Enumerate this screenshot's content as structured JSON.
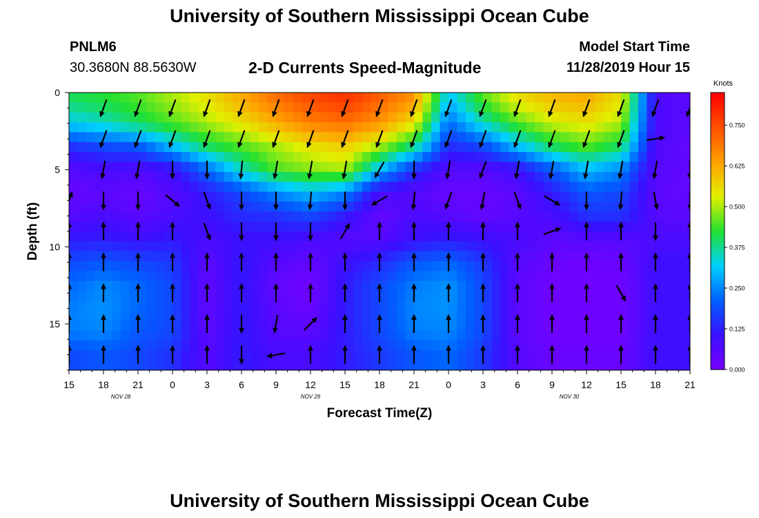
{
  "page": {
    "title_top": "University of Southern Mississippi Ocean Cube",
    "title_bottom": "University of Southern Mississippi Ocean Cube",
    "station_id": "PNLM6",
    "station_coords": "30.3680N 88.5630W",
    "model_start_label": "Model Start Time",
    "model_start_value": "11/28/2019 Hour 15",
    "subtitle": "2-D Currents Speed-Magnitude"
  },
  "colors": {
    "arrow": "#000000",
    "scale": [
      "#7a00ff",
      "#3a10ff",
      "#0060ff",
      "#00d0ff",
      "#20e030",
      "#e0f000",
      "#ffa000",
      "#ff5000",
      "#ff0000"
    ]
  },
  "chart_data": {
    "type": "heatmap",
    "title": "2-D Currents Speed-Magnitude",
    "xlabel": "Forecast Time(Z)",
    "ylabel": "Depth (ft)",
    "x_hours_range": [
      0,
      54
    ],
    "y_range": [
      0,
      18
    ],
    "y_ticks": [
      0,
      5,
      10,
      15
    ],
    "x_tick_labels": [
      "15",
      "18",
      "21",
      "0",
      "3",
      "6",
      "9",
      "12",
      "15",
      "18",
      "21",
      "0",
      "3",
      "6",
      "9",
      "12",
      "15",
      "18",
      "21"
    ],
    "date_labels": [
      {
        "label": "NOV  28",
        "hour": 4.5
      },
      {
        "label": "NOV  29",
        "hour": 21
      },
      {
        "label": "NOV  30",
        "hour": 43.5
      }
    ],
    "colorbar": {
      "label": "Knots",
      "range": [
        0,
        0.85
      ],
      "ticks": [
        "0.000",
        "0.125",
        "0.250",
        "0.375",
        "0.500",
        "0.625",
        "0.750"
      ],
      "tick_values": [
        0,
        0.125,
        0.25,
        0.375,
        0.5,
        0.625,
        0.75
      ]
    },
    "depths": [
      0.5,
      2,
      3.5,
      5,
      6.5,
      8,
      9.5,
      11,
      12.5,
      14,
      15.5,
      17
    ],
    "speed_hours": [
      0,
      3,
      6,
      9,
      12,
      15,
      18,
      21,
      24,
      27,
      30,
      33,
      36,
      39,
      42,
      45,
      48,
      51,
      54
    ],
    "speed": [
      [
        0.4,
        0.42,
        0.45,
        0.5,
        0.55,
        0.62,
        0.7,
        0.75,
        0.78,
        0.72,
        0.65,
        0.3,
        0.45,
        0.55,
        0.6,
        0.62,
        0.55,
        0.08,
        0.05
      ],
      [
        0.32,
        0.35,
        0.4,
        0.45,
        0.5,
        0.55,
        0.62,
        0.68,
        0.7,
        0.65,
        0.55,
        0.22,
        0.35,
        0.45,
        0.52,
        0.55,
        0.5,
        0.08,
        0.05
      ],
      [
        0.15,
        0.18,
        0.2,
        0.3,
        0.4,
        0.45,
        0.5,
        0.55,
        0.58,
        0.5,
        0.38,
        0.14,
        0.18,
        0.3,
        0.4,
        0.45,
        0.4,
        0.07,
        0.04
      ],
      [
        0.06,
        0.08,
        0.07,
        0.1,
        0.22,
        0.35,
        0.45,
        0.48,
        0.5,
        0.3,
        0.15,
        0.06,
        0.06,
        0.1,
        0.2,
        0.3,
        0.25,
        0.06,
        0.04
      ],
      [
        0.03,
        0.05,
        0.03,
        0.06,
        0.12,
        0.18,
        0.25,
        0.3,
        0.25,
        0.08,
        0.06,
        0.03,
        0.03,
        0.05,
        0.12,
        0.2,
        0.18,
        0.05,
        0.04
      ],
      [
        0.06,
        0.08,
        0.05,
        0.08,
        0.1,
        0.14,
        0.15,
        0.18,
        0.12,
        0.04,
        0.08,
        0.06,
        0.04,
        0.06,
        0.08,
        0.15,
        0.15,
        0.06,
        0.05
      ],
      [
        0.12,
        0.12,
        0.1,
        0.12,
        0.08,
        0.1,
        0.1,
        0.08,
        0.06,
        0.06,
        0.1,
        0.12,
        0.1,
        0.08,
        0.05,
        0.06,
        0.06,
        0.08,
        0.08
      ],
      [
        0.18,
        0.2,
        0.18,
        0.16,
        0.05,
        0.12,
        0.06,
        0.04,
        0.1,
        0.14,
        0.2,
        0.22,
        0.16,
        0.06,
        0.03,
        0.02,
        0.03,
        0.1,
        0.1
      ],
      [
        0.22,
        0.25,
        0.22,
        0.18,
        0.04,
        0.12,
        0.04,
        0.02,
        0.12,
        0.18,
        0.24,
        0.26,
        0.18,
        0.05,
        0.02,
        0.02,
        0.02,
        0.1,
        0.1
      ],
      [
        0.24,
        0.26,
        0.22,
        0.18,
        0.04,
        0.12,
        0.05,
        0.03,
        0.12,
        0.18,
        0.25,
        0.26,
        0.18,
        0.05,
        0.02,
        0.02,
        0.02,
        0.1,
        0.1
      ],
      [
        0.24,
        0.25,
        0.2,
        0.18,
        0.05,
        0.12,
        0.06,
        0.05,
        0.12,
        0.18,
        0.24,
        0.25,
        0.18,
        0.05,
        0.02,
        0.02,
        0.02,
        0.1,
        0.1
      ],
      [
        0.18,
        0.2,
        0.18,
        0.15,
        0.06,
        0.12,
        0.08,
        0.08,
        0.12,
        0.16,
        0.2,
        0.22,
        0.16,
        0.06,
        0.03,
        0.03,
        0.03,
        0.1,
        0.1
      ]
    ],
    "vector_hours": [
      0,
      3,
      6,
      9,
      12,
      15,
      18,
      21,
      24,
      27,
      30,
      33,
      36,
      39,
      42,
      45,
      48,
      51,
      54
    ],
    "vector_depths": [
      1,
      3,
      5,
      7,
      9,
      11,
      13,
      15,
      17
    ],
    "vector_dir": [
      [
        null,
        200,
        200,
        200,
        200,
        200,
        200,
        200,
        200,
        200,
        200,
        200,
        200,
        200,
        200,
        200,
        200,
        200,
        200
      ],
      [
        null,
        200,
        200,
        200,
        200,
        200,
        200,
        200,
        200,
        200,
        200,
        200,
        200,
        200,
        200,
        200,
        200,
        82,
        null
      ],
      [
        null,
        190,
        190,
        180,
        180,
        185,
        190,
        190,
        190,
        210,
        180,
        190,
        200,
        190,
        190,
        190,
        190,
        190,
        180
      ],
      [
        20,
        180,
        180,
        130,
        160,
        180,
        180,
        185,
        180,
        240,
        185,
        200,
        190,
        160,
        120,
        180,
        185,
        170,
        180
      ],
      [
        0,
        0,
        0,
        0,
        160,
        180,
        180,
        180,
        30,
        0,
        0,
        0,
        0,
        0,
        70,
        0,
        0,
        180,
        0
      ],
      [
        0,
        0,
        0,
        0,
        0,
        0,
        0,
        0,
        0,
        0,
        0,
        0,
        0,
        0,
        0,
        0,
        0,
        0,
        0
      ],
      [
        0,
        0,
        0,
        0,
        0,
        0,
        0,
        0,
        0,
        0,
        0,
        0,
        0,
        0,
        0,
        0,
        150,
        0,
        0
      ],
      [
        0,
        0,
        0,
        0,
        0,
        180,
        190,
        45,
        0,
        0,
        0,
        0,
        0,
        0,
        0,
        0,
        0,
        0,
        0
      ],
      [
        0,
        0,
        0,
        0,
        0,
        180,
        260,
        0,
        0,
        0,
        0,
        0,
        0,
        0,
        0,
        0,
        0,
        0,
        0
      ]
    ]
  }
}
